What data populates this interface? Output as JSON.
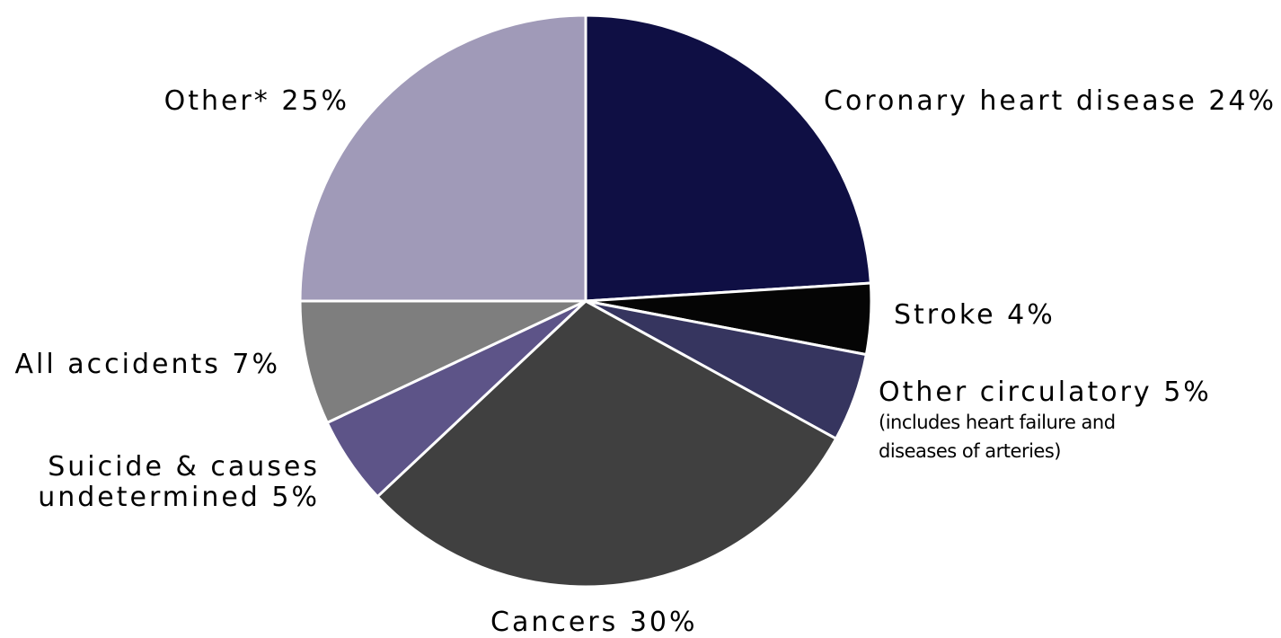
{
  "chart_data": {
    "type": "pie",
    "slices": [
      {
        "label": "Coronary heart disease",
        "value": 24,
        "value_label": "24%",
        "color": "#0f0f44"
      },
      {
        "label": "Stroke",
        "value": 4,
        "value_label": "4%",
        "color": "#050505"
      },
      {
        "label": "Other circulatory",
        "value": 5,
        "value_label": "5%",
        "color": "#36355f",
        "note": [
          "(includes heart failure and",
          "diseases of arteries)"
        ]
      },
      {
        "label": "Cancers",
        "value": 30,
        "value_label": "30%",
        "color": "#404040"
      },
      {
        "label": "Suicide & causes undetermined",
        "label_lines": [
          "Suicide & causes",
          "undetermined"
        ],
        "value": 5,
        "value_label": "5%",
        "color": "#5d5488"
      },
      {
        "label": "All accidents",
        "value": 7,
        "value_label": "7%",
        "color": "#7e7e7e"
      },
      {
        "label": "Other*",
        "value": 25,
        "value_label": "25%",
        "color": "#a09ab8"
      }
    ],
    "start_direction": "top",
    "order": "clockwise",
    "legend": "none"
  }
}
